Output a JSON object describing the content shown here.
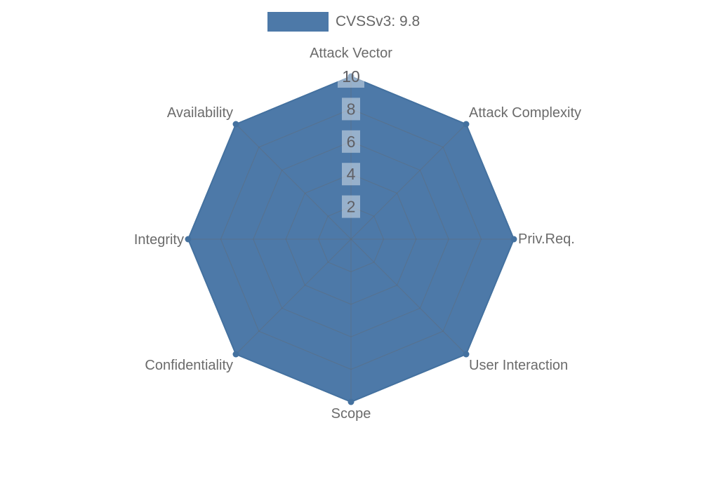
{
  "legend": {
    "label": "CVSSv3: 9.8",
    "swatch_color": "#4d79a8"
  },
  "colors": {
    "series_fill": "#4d79a8",
    "series_line": "#44719f",
    "series_marker": "#44719f",
    "grid_line": "rgba(102,102,102,0.4)",
    "tick_box_bg": "rgba(255,255,255,0.42)",
    "tick_text": "#5f5f64",
    "axis_name_text": "#6b6b6b",
    "background": "#ffffff"
  },
  "chart_data": {
    "type": "radar",
    "title": "",
    "categories": [
      "Attack Vector",
      "Attack Complexity",
      "Priv.Req.",
      "User Interaction",
      "Scope",
      "Confidentiality",
      "Integrity",
      "Availability"
    ],
    "series": [
      {
        "name": "CVSSv3: 9.8",
        "values": [
          10,
          10,
          10,
          10,
          10,
          10,
          10,
          10
        ]
      }
    ],
    "axis_range": [
      0,
      10
    ],
    "radial_ticks": [
      2,
      4,
      6,
      8,
      10
    ],
    "grid": true,
    "legend_position": "top"
  }
}
